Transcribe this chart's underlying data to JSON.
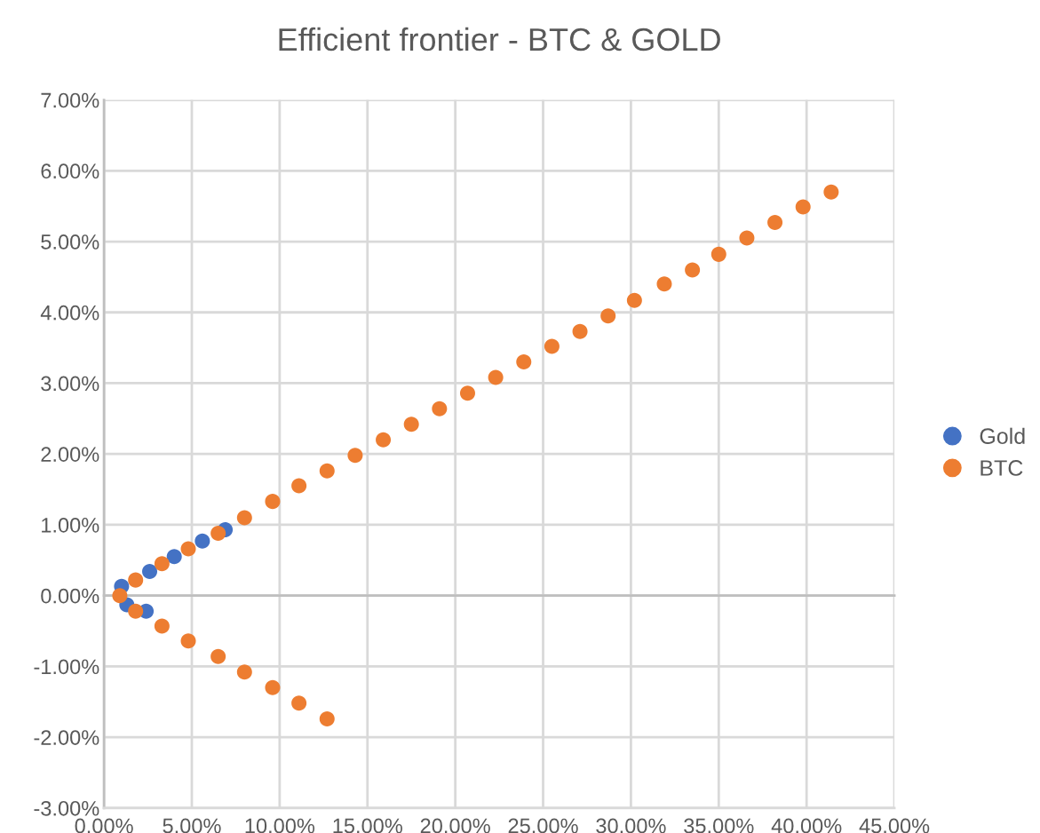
{
  "chart_data": {
    "type": "scatter",
    "title": "Efficient frontier - BTC & GOLD",
    "xlim": [
      0,
      45
    ],
    "ylim": [
      -3,
      7
    ],
    "xticks": [
      {
        "value": 0,
        "label": "0.00%"
      },
      {
        "value": 5,
        "label": "5.00%"
      },
      {
        "value": 10,
        "label": "10.00%"
      },
      {
        "value": 15,
        "label": "15.00%"
      },
      {
        "value": 20,
        "label": "20.00%"
      },
      {
        "value": 25,
        "label": "25.00%"
      },
      {
        "value": 30,
        "label": "30.00%"
      },
      {
        "value": 35,
        "label": "35.00%"
      },
      {
        "value": 40,
        "label": "40.00%"
      },
      {
        "value": 45,
        "label": "45.00%"
      }
    ],
    "yticks": [
      {
        "value": -3,
        "label": "-3.00%"
      },
      {
        "value": -2,
        "label": "-2.00%"
      },
      {
        "value": -1,
        "label": "-1.00%"
      },
      {
        "value": 0,
        "label": "0.00%"
      },
      {
        "value": 1,
        "label": "1.00%"
      },
      {
        "value": 2,
        "label": "2.00%"
      },
      {
        "value": 3,
        "label": "3.00%"
      },
      {
        "value": 4,
        "label": "4.00%"
      },
      {
        "value": 5,
        "label": "5.00%"
      },
      {
        "value": 6,
        "label": "6.00%"
      },
      {
        "value": 7,
        "label": "7.00%"
      }
    ],
    "grid": true,
    "legend": "right",
    "marker": "circle",
    "series": [
      {
        "name": "Gold",
        "color": "#4472c4",
        "x": [
          2.4,
          1.3,
          1.0,
          2.6,
          4.0,
          5.6,
          6.9
        ],
        "values": [
          -0.22,
          -0.13,
          0.13,
          0.34,
          0.55,
          0.77,
          0.93
        ]
      },
      {
        "name": "BTC",
        "color": "#ed7d31",
        "x": [
          12.7,
          11.1,
          9.6,
          8.0,
          6.5,
          4.8,
          3.3,
          1.8,
          0.9,
          1.8,
          3.3,
          4.8,
          6.5,
          8.0,
          9.6,
          11.1,
          12.7,
          14.3,
          15.9,
          17.5,
          19.1,
          20.7,
          22.3,
          23.9,
          25.5,
          27.1,
          28.7,
          30.2,
          31.9,
          33.5,
          35.0,
          36.6,
          38.2,
          39.8,
          41.4
        ],
        "values": [
          -1.74,
          -1.52,
          -1.3,
          -1.08,
          -0.86,
          -0.64,
          -0.43,
          -0.22,
          0.0,
          0.22,
          0.45,
          0.66,
          0.88,
          1.1,
          1.33,
          1.55,
          1.76,
          1.98,
          2.2,
          2.42,
          2.64,
          2.86,
          3.08,
          3.3,
          3.52,
          3.73,
          3.95,
          4.17,
          4.4,
          4.6,
          4.82,
          5.05,
          5.27,
          5.49,
          5.7
        ]
      }
    ]
  }
}
